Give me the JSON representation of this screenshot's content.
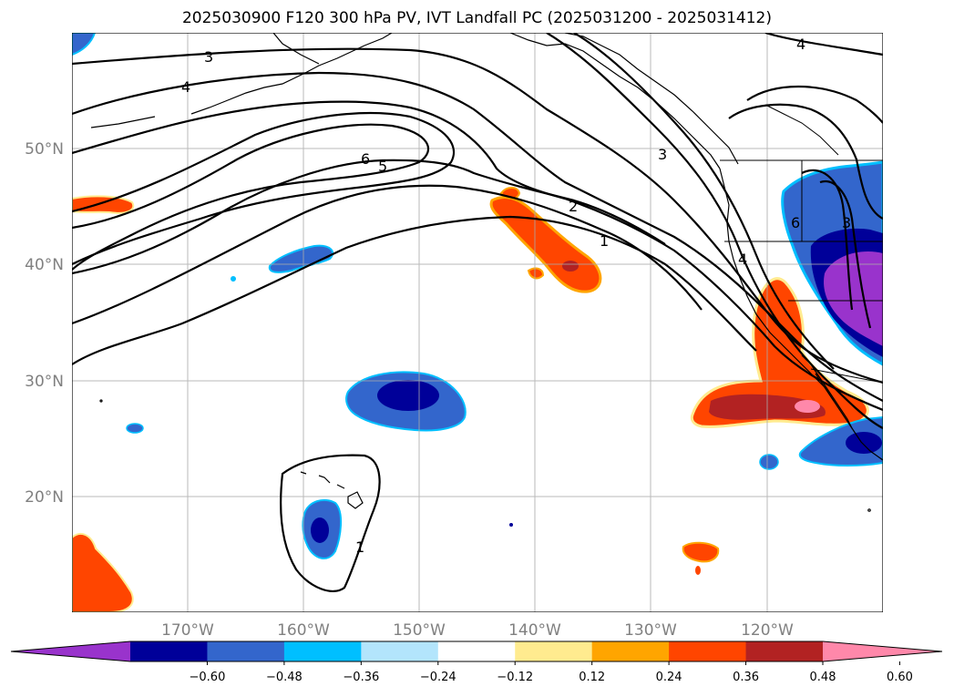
{
  "title": "2025030900 F120 300 hPa PV, IVT Landfall PC (2025031200 - 2025031412)",
  "map": {
    "lon_range": [
      -180,
      -110
    ],
    "lat_range": [
      10,
      60
    ],
    "lat_ticks": [
      {
        "value": 50,
        "label": "50°N"
      },
      {
        "value": 40,
        "label": "40°N"
      },
      {
        "value": 30,
        "label": "30°N"
      },
      {
        "value": 20,
        "label": "20°N"
      }
    ],
    "lon_ticks": [
      {
        "value": -170,
        "label": "170°W"
      },
      {
        "value": -160,
        "label": "160°W"
      },
      {
        "value": -150,
        "label": "150°W"
      },
      {
        "value": -140,
        "label": "140°W"
      },
      {
        "value": -130,
        "label": "130°W"
      },
      {
        "value": -120,
        "label": "120°W"
      }
    ],
    "contour_labels": [
      "3",
      "4",
      "6",
      "5",
      "2",
      "1",
      "3",
      "4",
      "6",
      "3",
      "4",
      "1"
    ]
  },
  "colorbar": {
    "colors": [
      "#9933cc",
      "#000099",
      "#3366cc",
      "#00bfff",
      "#b3e5fc",
      "#ffffff",
      "#ffeb8f",
      "#ffa500",
      "#ff4500",
      "#b22222",
      "#ff88aa"
    ],
    "tick_labels": [
      "−0.60",
      "−0.48",
      "−0.36",
      "−0.24",
      "−0.12",
      "0.12",
      "0.24",
      "0.36",
      "0.48",
      "0.60"
    ]
  }
}
